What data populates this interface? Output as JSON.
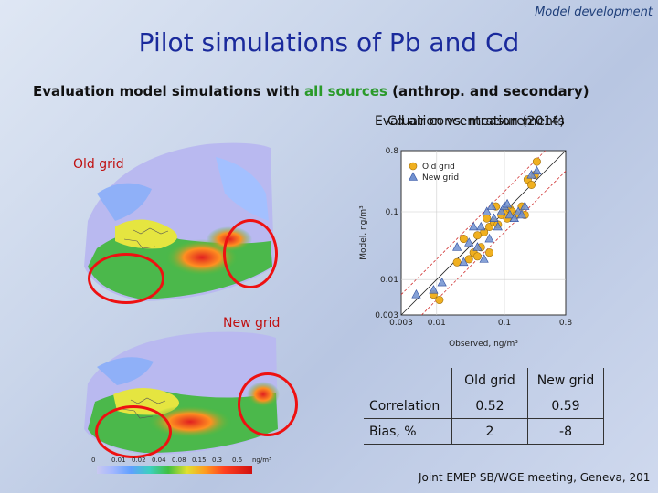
{
  "header": {
    "section_tag": "Model development",
    "title": "Pilot simulations of Pb and Cd",
    "subtitle_prefix": "Evaluation model simulations with ",
    "subtitle_highlight": "all sources",
    "subtitle_suffix": " (anthrop. and secondary)",
    "overlap_text_a": "Evaluation vs. measurements",
    "overlap_text_b": "Cd air concentration (2014)"
  },
  "maps": {
    "old_label": "Old grid",
    "new_label": "New grid",
    "colorbar_ticks": [
      "0",
      "0.01",
      "0.02",
      "0.04",
      "0.08",
      "0.15",
      "0.3",
      "0.6",
      "ng/m³"
    ]
  },
  "chart_data": {
    "type": "scatter",
    "title": "",
    "xlabel": "Observed, ng/m³",
    "ylabel": "Model, ng/m³",
    "scale": "log",
    "xlim": [
      0.003,
      0.8
    ],
    "ylim": [
      0.003,
      0.8
    ],
    "x_ticks": [
      "0.003",
      "0.01",
      "0.1",
      "0.8"
    ],
    "y_ticks": [
      "0.003",
      "0.01",
      "0.1",
      "0.8"
    ],
    "reference_lines": [
      "1:1 (black)",
      "factor 2 (red dashed)"
    ],
    "legend_position": "top-left",
    "series": [
      {
        "name": "Old grid",
        "color": "#f0b020",
        "marker": "circle",
        "points": [
          [
            0.009,
            0.006
          ],
          [
            0.011,
            0.005
          ],
          [
            0.02,
            0.018
          ],
          [
            0.025,
            0.04
          ],
          [
            0.03,
            0.02
          ],
          [
            0.035,
            0.025
          ],
          [
            0.04,
            0.022
          ],
          [
            0.045,
            0.03
          ],
          [
            0.05,
            0.05
          ],
          [
            0.055,
            0.08
          ],
          [
            0.06,
            0.06
          ],
          [
            0.07,
            0.07
          ],
          [
            0.075,
            0.12
          ],
          [
            0.08,
            0.065
          ],
          [
            0.09,
            0.09
          ],
          [
            0.1,
            0.1
          ],
          [
            0.11,
            0.08
          ],
          [
            0.12,
            0.11
          ],
          [
            0.13,
            0.1
          ],
          [
            0.15,
            0.09
          ],
          [
            0.18,
            0.12
          ],
          [
            0.2,
            0.09
          ],
          [
            0.22,
            0.3
          ],
          [
            0.25,
            0.25
          ],
          [
            0.3,
            0.55
          ],
          [
            0.28,
            0.35
          ],
          [
            0.06,
            0.025
          ],
          [
            0.04,
            0.045
          ]
        ]
      },
      {
        "name": "New grid",
        "color": "#7090d0",
        "marker": "triangle",
        "points": [
          [
            0.005,
            0.006
          ],
          [
            0.009,
            0.007
          ],
          [
            0.012,
            0.009
          ],
          [
            0.02,
            0.03
          ],
          [
            0.025,
            0.018
          ],
          [
            0.03,
            0.035
          ],
          [
            0.035,
            0.06
          ],
          [
            0.04,
            0.03
          ],
          [
            0.05,
            0.02
          ],
          [
            0.055,
            0.1
          ],
          [
            0.06,
            0.04
          ],
          [
            0.07,
            0.08
          ],
          [
            0.08,
            0.06
          ],
          [
            0.09,
            0.1
          ],
          [
            0.1,
            0.12
          ],
          [
            0.11,
            0.13
          ],
          [
            0.12,
            0.09
          ],
          [
            0.14,
            0.08
          ],
          [
            0.16,
            0.1
          ],
          [
            0.18,
            0.09
          ],
          [
            0.2,
            0.12
          ],
          [
            0.25,
            0.35
          ],
          [
            0.3,
            0.4
          ],
          [
            0.045,
            0.06
          ],
          [
            0.065,
            0.12
          ]
        ]
      }
    ]
  },
  "stats_table": {
    "col_old": "Old grid",
    "col_new": "New grid",
    "rows": [
      {
        "label": "Correlation",
        "old": "0.52",
        "new": "0.59"
      },
      {
        "label": "Bias, %",
        "old": "2",
        "new": "-8"
      }
    ]
  },
  "footer": {
    "text": "Joint EMEP SB/WGE meeting, Geneva, 201"
  }
}
